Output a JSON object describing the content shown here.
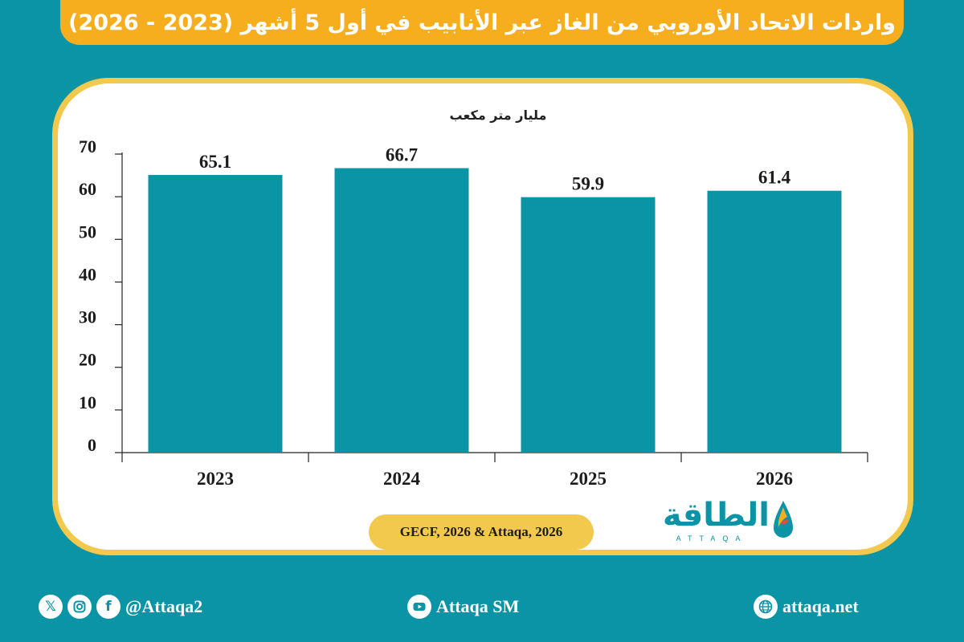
{
  "title": "واردات الاتحاد الأوروبي من الغاز عبر الأنابيب في أول 5 أشهر (2023 - 2026)",
  "colors": {
    "background": "#0b93a6",
    "title_bar": "#f6ae1f",
    "card_border": "#f2c94c",
    "bar": "#0b93a6"
  },
  "chart_data": {
    "type": "bar",
    "title": "واردات الاتحاد الأوروبي من الغاز عبر الأنابيب في أول 5 أشهر (2023 - 2026)",
    "unit_label": "مليار متر مكعب",
    "categories": [
      "2023",
      "2024",
      "2025",
      "2026"
    ],
    "values": [
      65.1,
      66.7,
      59.9,
      61.4
    ],
    "data_labels": [
      "65.1",
      "66.7",
      "59.9",
      "61.4"
    ],
    "y_ticks": [
      "0",
      "10",
      "20",
      "30",
      "40",
      "50",
      "60",
      "70"
    ],
    "ylim": [
      0,
      70
    ],
    "grid": false,
    "legend": "none"
  },
  "source": "GECF, 2026 & Attaqa, 2026",
  "logo": {
    "arabic": "الطاقة",
    "english": "ATTAQA"
  },
  "footer": {
    "social_handle": "@Attaqa2",
    "social_icons": [
      "x-icon",
      "instagram-icon",
      "facebook-icon"
    ],
    "youtube": "Attaqa SM",
    "website": "attaqa.net"
  }
}
